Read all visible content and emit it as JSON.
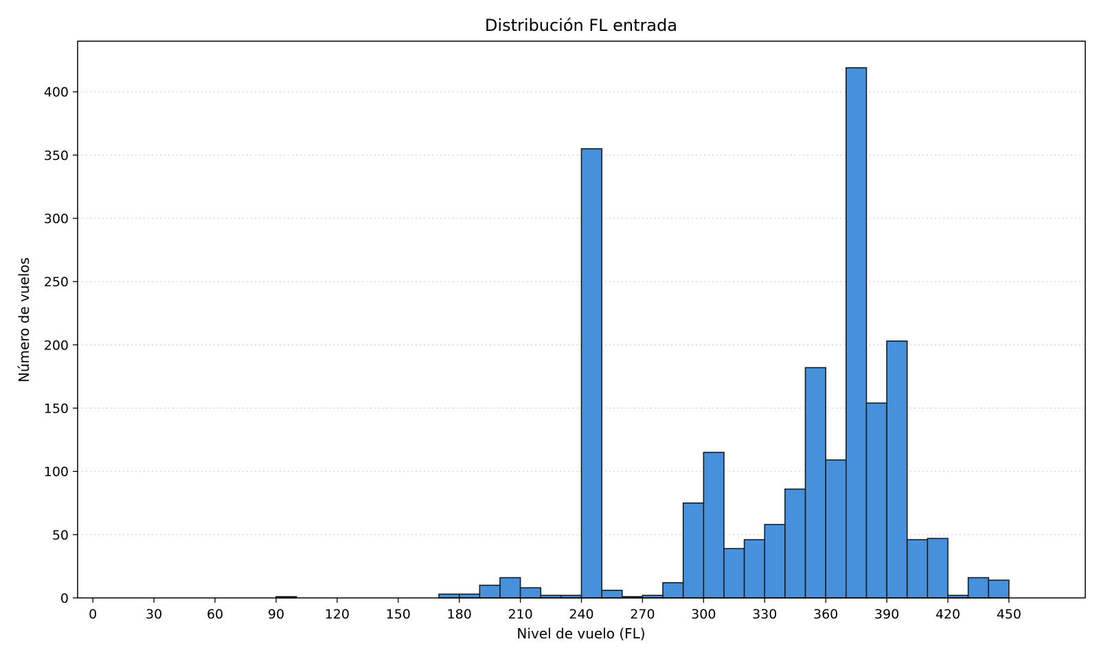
{
  "chart_data": {
    "type": "bar",
    "title": "Distribución FL entrada",
    "xlabel": "Nivel de vuelo (FL)",
    "ylabel": "Número de vuelos",
    "bar_color": "#4690dc",
    "edge_color": "#1a1a1a",
    "grid": true,
    "grid_axis": "y",
    "xlim": [
      -7.5,
      487.5
    ],
    "ylim": [
      0,
      440
    ],
    "xticks": [
      0,
      30,
      60,
      90,
      120,
      150,
      180,
      210,
      240,
      270,
      300,
      330,
      360,
      390,
      420,
      450
    ],
    "xtick_labels": [
      "0",
      "30",
      "60",
      "90",
      "120",
      "150",
      "180",
      "210",
      "240",
      "270",
      "300",
      "330",
      "360",
      "390",
      "420",
      "450"
    ],
    "yticks": [
      0,
      50,
      100,
      150,
      200,
      250,
      300,
      350,
      400
    ],
    "ytick_labels": [
      "0",
      "50",
      "100",
      "150",
      "200",
      "250",
      "300",
      "350",
      "400"
    ],
    "bin_width": 10,
    "bins": [
      {
        "start": 90,
        "count": 1
      },
      {
        "start": 170,
        "count": 3
      },
      {
        "start": 180,
        "count": 3
      },
      {
        "start": 190,
        "count": 10
      },
      {
        "start": 200,
        "count": 16
      },
      {
        "start": 210,
        "count": 8
      },
      {
        "start": 220,
        "count": 2
      },
      {
        "start": 230,
        "count": 2
      },
      {
        "start": 240,
        "count": 355
      },
      {
        "start": 250,
        "count": 6
      },
      {
        "start": 260,
        "count": 1
      },
      {
        "start": 270,
        "count": 2
      },
      {
        "start": 280,
        "count": 12
      },
      {
        "start": 290,
        "count": 75
      },
      {
        "start": 300,
        "count": 115
      },
      {
        "start": 310,
        "count": 39
      },
      {
        "start": 320,
        "count": 46
      },
      {
        "start": 330,
        "count": 58
      },
      {
        "start": 340,
        "count": 86
      },
      {
        "start": 350,
        "count": 182
      },
      {
        "start": 360,
        "count": 109
      },
      {
        "start": 370,
        "count": 419
      },
      {
        "start": 380,
        "count": 154
      },
      {
        "start": 390,
        "count": 203
      },
      {
        "start": 400,
        "count": 46
      },
      {
        "start": 410,
        "count": 47
      },
      {
        "start": 420,
        "count": 2
      },
      {
        "start": 430,
        "count": 16
      },
      {
        "start": 440,
        "count": 14
      }
    ]
  }
}
